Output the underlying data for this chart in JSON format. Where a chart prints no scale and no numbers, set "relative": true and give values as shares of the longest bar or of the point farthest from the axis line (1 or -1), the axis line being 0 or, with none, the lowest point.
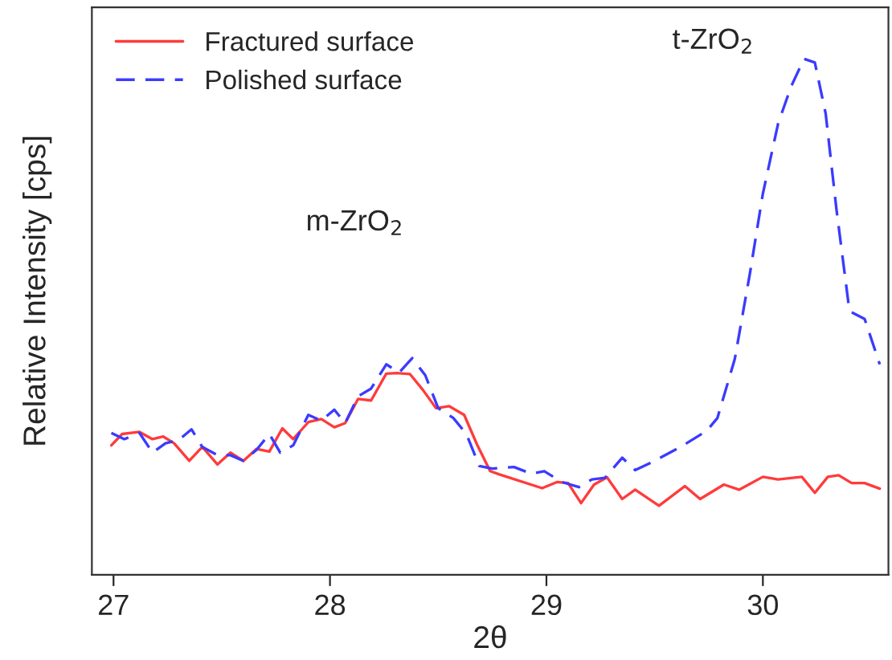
{
  "chart_data": {
    "type": "line",
    "relative": true,
    "xlabel": "2θ",
    "ylabel": "Relative Intensity [cps]",
    "xlim": [
      26.9,
      30.58
    ],
    "xticks": [
      27,
      28,
      29,
      30
    ],
    "legend": "top left",
    "annotations": [
      "m-ZrO$_{2}$",
      "t-ZrO$_{2}$"
    ],
    "series": [
      {
        "name": "Fractured surface",
        "color": "#ff3b3b",
        "line_style": "solid",
        "x": [
          26.99,
          27.04,
          27.12,
          27.18,
          27.23,
          27.28,
          27.35,
          27.41,
          27.48,
          27.54,
          27.6,
          27.66,
          27.72,
          27.78,
          27.83,
          27.9,
          27.96,
          28.02,
          28.07,
          28.13,
          28.19,
          28.26,
          28.31,
          28.37,
          28.43,
          28.49,
          28.55,
          28.62,
          28.68,
          28.74,
          28.78,
          28.98,
          29.05,
          29.1,
          29.16,
          29.22,
          29.28,
          29.35,
          29.41,
          29.52,
          29.64,
          29.71,
          29.82,
          29.89,
          30.0,
          30.07,
          30.18,
          30.24,
          30.3,
          30.35,
          30.41,
          30.47,
          30.54
        ],
        "values": [
          0.251,
          0.273,
          0.277,
          0.263,
          0.268,
          0.255,
          0.221,
          0.248,
          0.214,
          0.237,
          0.221,
          0.244,
          0.239,
          0.284,
          0.263,
          0.296,
          0.302,
          0.286,
          0.294,
          0.341,
          0.338,
          0.39,
          0.391,
          0.389,
          0.358,
          0.323,
          0.327,
          0.31,
          0.252,
          0.201,
          0.195,
          0.168,
          0.18,
          0.178,
          0.139,
          0.175,
          0.189,
          0.147,
          0.165,
          0.134,
          0.172,
          0.147,
          0.175,
          0.165,
          0.19,
          0.185,
          0.19,
          0.159,
          0.19,
          0.193,
          0.178,
          0.178,
          0.167
        ]
      },
      {
        "name": "Polished surface",
        "color": "#3b3bff",
        "line_style": "dashed",
        "x": [
          26.99,
          27.05,
          27.12,
          27.18,
          27.24,
          27.3,
          27.36,
          27.41,
          27.48,
          27.54,
          27.6,
          27.66,
          27.72,
          27.77,
          27.83,
          27.9,
          27.96,
          28.02,
          28.07,
          28.13,
          28.19,
          28.26,
          28.32,
          28.38,
          28.44,
          28.5,
          28.57,
          28.63,
          28.69,
          28.75,
          28.85,
          28.93,
          28.99,
          29.07,
          29.15,
          29.21,
          29.27,
          29.35,
          29.41,
          29.5,
          29.62,
          29.74,
          29.79,
          29.87,
          29.94,
          30.0,
          30.07,
          30.13,
          30.19,
          30.24,
          30.29,
          30.34,
          30.4,
          30.47,
          30.54
        ],
        "values": [
          0.275,
          0.263,
          0.275,
          0.237,
          0.255,
          0.261,
          0.282,
          0.248,
          0.232,
          0.232,
          0.221,
          0.242,
          0.273,
          0.237,
          0.251,
          0.31,
          0.299,
          0.32,
          0.294,
          0.346,
          0.361,
          0.408,
          0.392,
          0.42,
          0.387,
          0.323,
          0.304,
          0.273,
          0.211,
          0.206,
          0.209,
          0.196,
          0.201,
          0.18,
          0.17,
          0.185,
          0.188,
          0.227,
          0.203,
          0.221,
          0.248,
          0.279,
          0.304,
          0.418,
          0.584,
          0.739,
          0.874,
          0.946,
          1.0,
          0.993,
          0.894,
          0.708,
          0.511,
          0.496,
          0.408
        ]
      }
    ]
  }
}
